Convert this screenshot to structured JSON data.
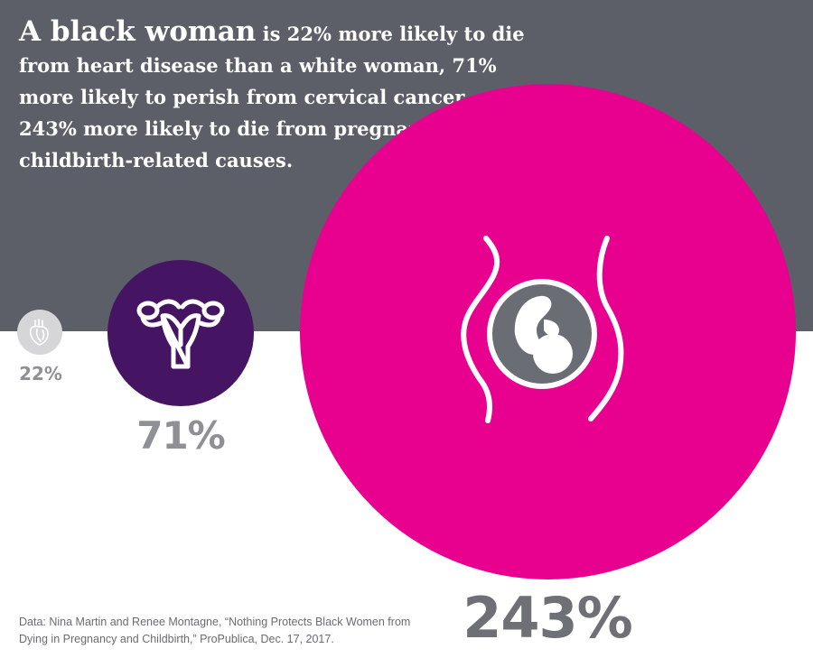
{
  "headline": {
    "lead": "A black woman",
    "rest": " is 22% more likely to die from heart disease than a white woman, 71% more likely to perish from cervical cancer, and 243% more likely to die from pregnancy- or childbirth-related causes."
  },
  "chart_data": {
    "type": "bubble",
    "title": "A black woman is 22% more likely to die from heart disease than a white woman, 71% more likely to perish from cervical cancer, and 243% more likely to die from pregnancy- or childbirth-related causes.",
    "categories": [
      "heart disease",
      "cervical cancer",
      "pregnancy- or childbirth-related causes"
    ],
    "values": [
      22,
      71,
      243
    ],
    "labels": [
      "22%",
      "71%",
      "243%"
    ],
    "icons": [
      "heart-icon",
      "uterus-icon",
      "pregnancy-icon"
    ],
    "colors": [
      "#d6d6d8",
      "#451563",
      "#e8008f"
    ]
  },
  "source": "Data: Nina Martin and Renee Montagne, “Nothing Protects Black Women from Dying in Pregnancy and Childbirth,” ProPublica, Dec. 17, 2017.",
  "colors": {
    "header_background": "#5c5f67",
    "label_gray": "#8f9095"
  }
}
